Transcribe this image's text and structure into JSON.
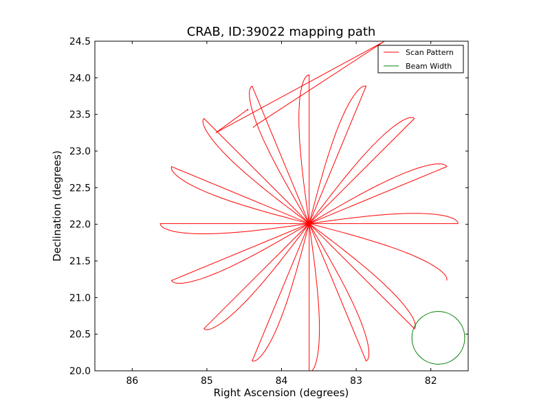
{
  "chart_data": {
    "type": "line",
    "title": "CRAB, ID:39022 mapping path",
    "xlabel": "Right Ascension (degrees)",
    "ylabel": "Declination (degrees)",
    "xlim": [
      86.5,
      81.5
    ],
    "ylim": [
      20.0,
      24.5
    ],
    "x_reversed": true,
    "xticks": [
      86,
      85,
      84,
      83,
      82
    ],
    "xtick_labels": [
      "86",
      "85",
      "84",
      "83",
      "82"
    ],
    "yticks": [
      20.0,
      20.5,
      21.0,
      21.5,
      22.0,
      22.5,
      23.0,
      23.5,
      24.0,
      24.5
    ],
    "ytick_labels": [
      "20.0",
      "20.5",
      "21.0",
      "21.5",
      "22.0",
      "22.5",
      "23.0",
      "23.5",
      "24.0",
      "24.5"
    ],
    "grid": false,
    "legend": {
      "position": "top-right",
      "entries": [
        "Scan Pattern",
        "Beam Width"
      ]
    },
    "series": [
      {
        "name": "Scan Pattern",
        "color": "#ff0000",
        "pattern": "rosette",
        "center": [
          83.63,
          22.01
        ],
        "petals": 16,
        "petal_length_deg": 2.03,
        "petal_half_width_deg": 0.14,
        "first_petal_angle_deg": 0,
        "entry_path": {
          "x": [
            84.45,
            84.45,
            84.88,
            82.62,
            84.35,
            84.38
          ],
          "y": [
            23.55,
            23.57,
            23.25,
            24.5,
            23.35,
            23.32
          ]
        }
      },
      {
        "name": "Beam Width",
        "color": "#008000",
        "shape": "circle",
        "center": [
          81.9,
          20.45
        ],
        "radius_deg": 0.36
      }
    ]
  }
}
